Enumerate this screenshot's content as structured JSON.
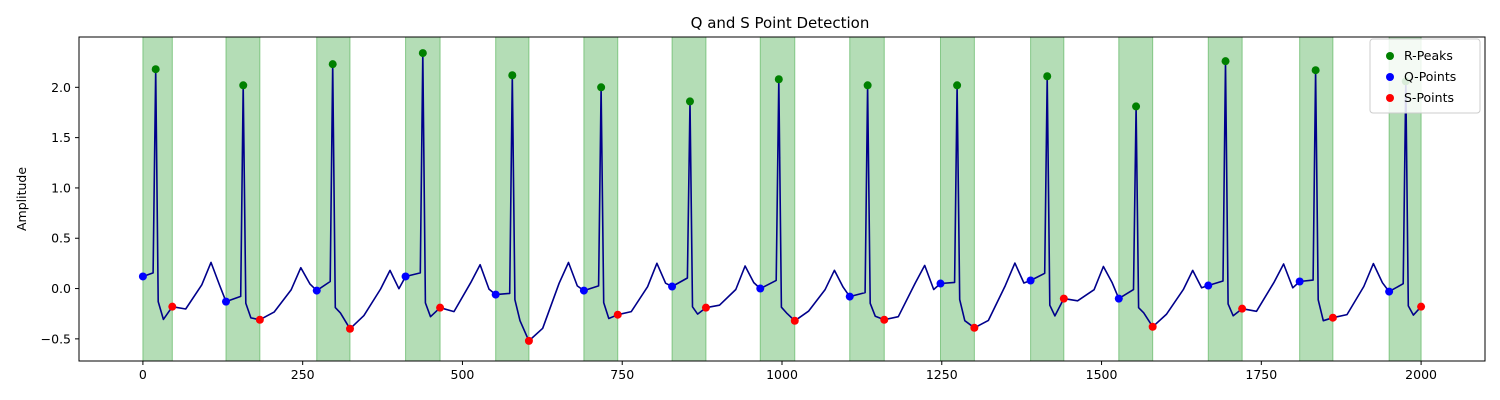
{
  "chart_data": {
    "type": "line",
    "title": "Q and S Point Detection",
    "xlabel": "",
    "ylabel": "Amplitude",
    "xlim": [
      -100,
      2100
    ],
    "ylim": [
      -0.72,
      2.5
    ],
    "xticks": [
      0,
      250,
      500,
      750,
      1000,
      1250,
      1500,
      1750,
      2000
    ],
    "yticks": [
      -0.5,
      0.0,
      0.5,
      1.0,
      1.5,
      2.0
    ],
    "xtick_labels": [
      "0",
      "250",
      "500",
      "750",
      "1000",
      "1250",
      "1500",
      "1750",
      "2000"
    ],
    "ytick_labels": [
      "−0.5",
      "0.0",
      "0.5",
      "1.0",
      "1.5",
      "2.0"
    ],
    "legend_position": "top-right",
    "grid": false,
    "colors": {
      "signal": "#00008b",
      "r_peaks": "#008000",
      "q_points": "#0000ff",
      "s_points": "#ff0000",
      "span_fill": "#4caf50"
    },
    "series": [
      {
        "name": "R-Peaks",
        "x": [
          20,
          157,
          297,
          438,
          578,
          717,
          856,
          995,
          1134,
          1274,
          1415,
          1554,
          1694,
          1835,
          1976
        ],
        "y": [
          2.18,
          2.02,
          2.23,
          2.34,
          2.12,
          2.0,
          1.86,
          2.08,
          2.02,
          2.02,
          2.11,
          1.81,
          2.26,
          2.17,
          2.06
        ]
      },
      {
        "name": "Q-Points",
        "x": [
          0,
          130,
          272,
          411,
          552,
          690,
          828,
          966,
          1106,
          1248,
          1389,
          1527,
          1667,
          1810,
          1950
        ],
        "y": [
          0.12,
          -0.13,
          -0.02,
          0.12,
          -0.06,
          -0.02,
          0.02,
          0.0,
          -0.08,
          0.05,
          0.08,
          -0.1,
          0.03,
          0.07,
          -0.03
        ]
      },
      {
        "name": "S-Points",
        "x": [
          46,
          183,
          324,
          465,
          604,
          743,
          881,
          1020,
          1160,
          1301,
          1441,
          1580,
          1720,
          1862,
          2000
        ],
        "y": [
          -0.18,
          -0.31,
          -0.4,
          -0.19,
          -0.52,
          -0.26,
          -0.19,
          -0.32,
          -0.31,
          -0.39,
          -0.1,
          -0.38,
          -0.2,
          -0.29,
          -0.18
        ]
      }
    ],
    "spans": [
      [
        0,
        46
      ],
      [
        130,
        183
      ],
      [
        272,
        324
      ],
      [
        411,
        465
      ],
      [
        552,
        604
      ],
      [
        690,
        743
      ],
      [
        828,
        881
      ],
      [
        966,
        1020
      ],
      [
        1106,
        1160
      ],
      [
        1248,
        1301
      ],
      [
        1389,
        1441
      ],
      [
        1527,
        1580
      ],
      [
        1667,
        1720
      ],
      [
        1810,
        1862
      ],
      [
        1950,
        2000
      ]
    ]
  }
}
